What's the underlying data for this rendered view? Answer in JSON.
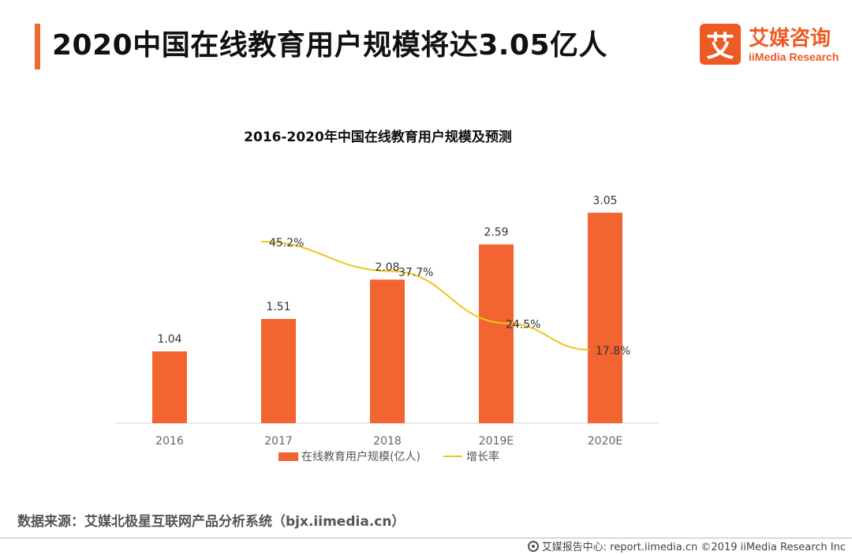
{
  "header": {
    "title": "2020中国在线教育用户规模将达3.05亿人"
  },
  "logo": {
    "mark": "艾",
    "name_cn": "艾媒咨询",
    "name_en": "iiMedia Research"
  },
  "chart_data": {
    "type": "bar",
    "title": "2016-2020年中国在线教育用户规模及预测",
    "categories": [
      "2016",
      "2017",
      "2018",
      "2019E",
      "2020E"
    ],
    "series": [
      {
        "name": "在线教育用户规模(亿人)",
        "type": "bar",
        "values": [
          1.04,
          1.51,
          2.08,
          2.59,
          3.05
        ],
        "labels": [
          "1.04",
          "1.51",
          "2.08",
          "2.59",
          "3.05"
        ],
        "color": "#f26430"
      },
      {
        "name": "增长率",
        "type": "line",
        "values": [
          null,
          45.2,
          37.7,
          24.5,
          17.8
        ],
        "labels": [
          "",
          "45.2%",
          "37.7%",
          "24.5%",
          "17.8%"
        ],
        "color": "#f0c419"
      }
    ],
    "grid": false,
    "legend": "bottom"
  },
  "source": {
    "text": "数据来源：艾媒北极星互联网产品分析系统（bjx.iimedia.cn）"
  },
  "footer": {
    "text": "艾媒报告中心: report.iimedia.cn  ©2019  iiMedia Research  Inc"
  }
}
